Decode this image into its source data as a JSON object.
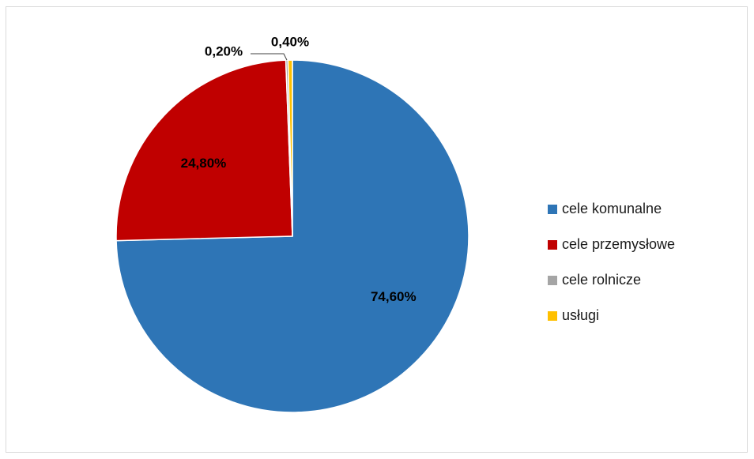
{
  "chart_data": {
    "type": "pie",
    "title": "",
    "slices": [
      {
        "label": "cele komunalne",
        "value": 74.6,
        "display": "74,60%",
        "color": "#2E75B6"
      },
      {
        "label": "cele przemysłowe",
        "value": 24.8,
        "display": "24,80%",
        "color": "#C00000"
      },
      {
        "label": "cele rolnicze",
        "value": 0.2,
        "display": "0,20%",
        "color": "#A5A5A5"
      },
      {
        "label": "usługi",
        "value": 0.4,
        "display": "0,40%",
        "color": "#FFC000"
      }
    ],
    "start_angle": "12 o'clock",
    "direction": "clockwise",
    "legend_position": "right"
  }
}
